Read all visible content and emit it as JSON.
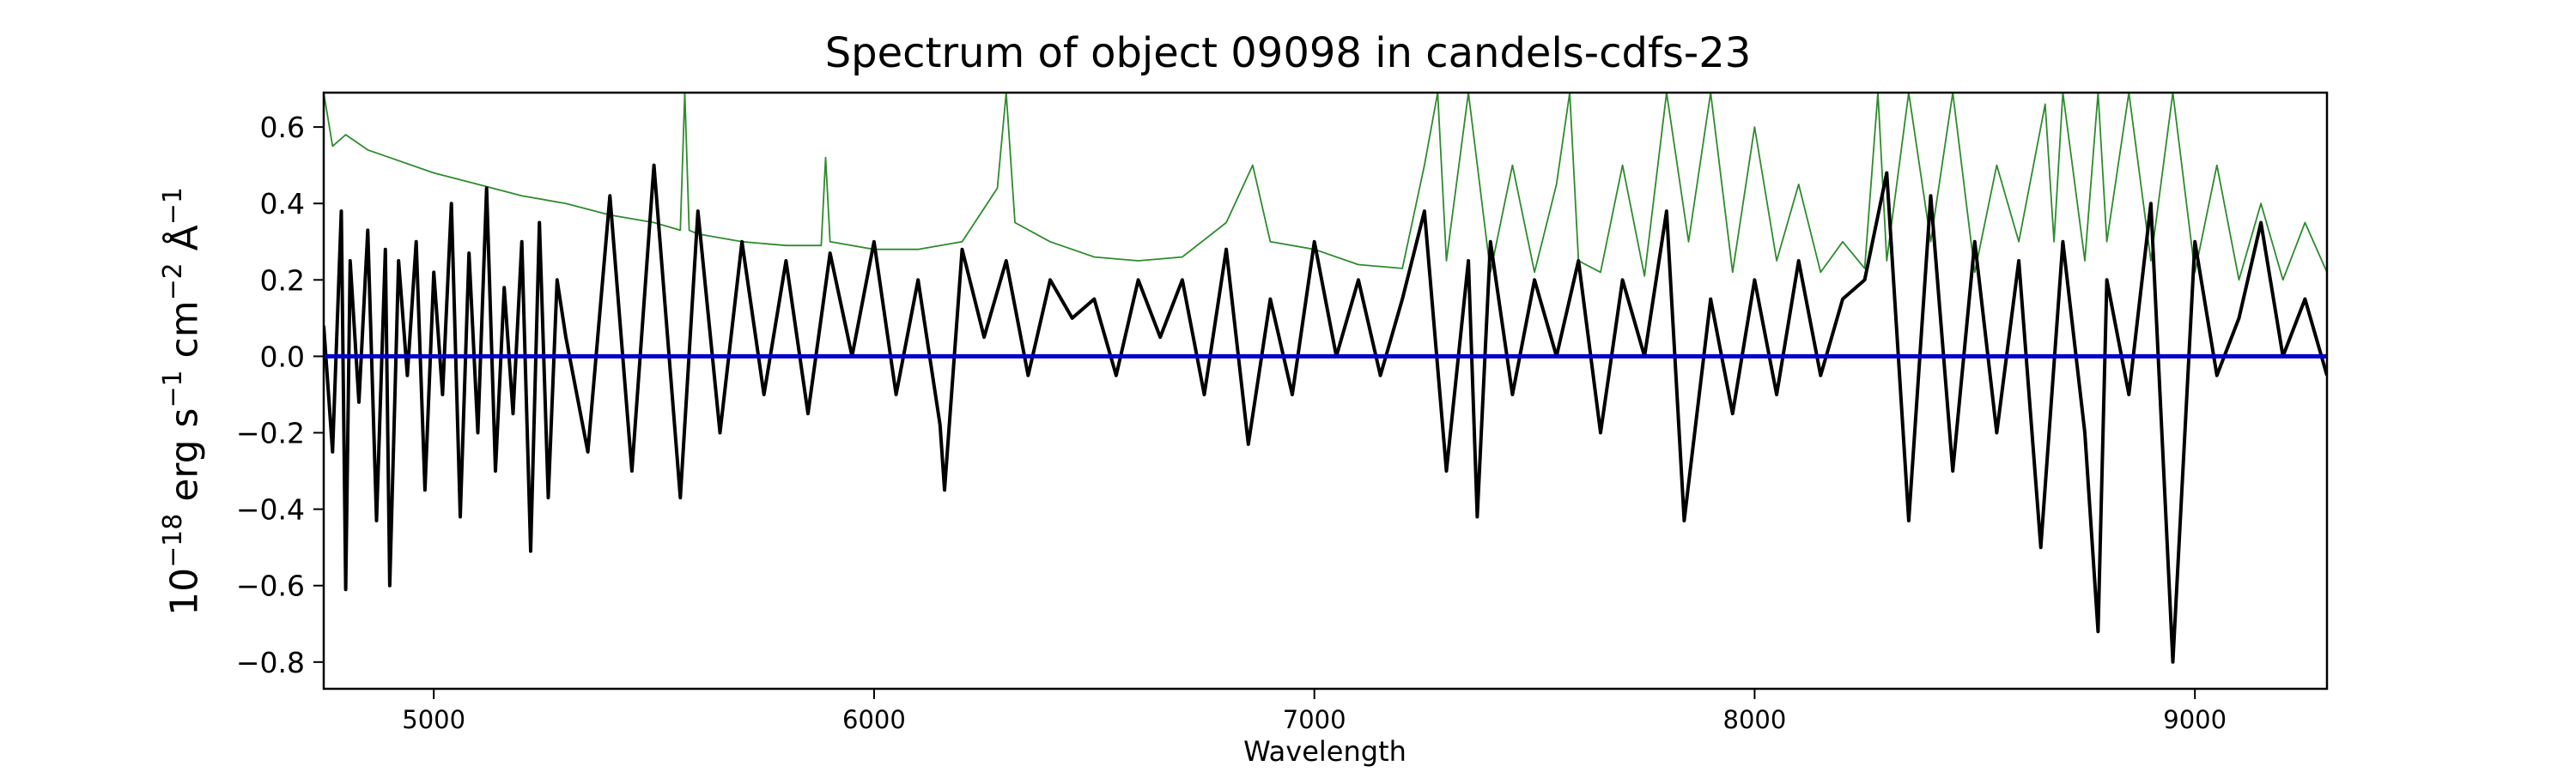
{
  "chart_data": {
    "type": "line",
    "title": "Spectrum of object 09098 in candels-cdfs-23",
    "xlabel": "Wavelength",
    "ylabel": {
      "prefix": "10",
      "exp1": "−18",
      "mid1": " erg s",
      "exp2": "−1",
      "mid2": " cm",
      "exp3": "−2",
      "mid3": " Å",
      "exp4": "−1"
    },
    "xlim": [
      4750,
      9300
    ],
    "ylim": [
      -0.87,
      0.69
    ],
    "xticks": [
      {
        "value": 5000,
        "label": "5000"
      },
      {
        "value": 6000,
        "label": "6000"
      },
      {
        "value": 7000,
        "label": "7000"
      },
      {
        "value": 8000,
        "label": "8000"
      },
      {
        "value": 9000,
        "label": "9000"
      }
    ],
    "yticks": [
      {
        "value": 0.6,
        "label": "0.6"
      },
      {
        "value": 0.4,
        "label": "0.4"
      },
      {
        "value": 0.2,
        "label": "0.2"
      },
      {
        "value": 0.0,
        "label": "0.0"
      },
      {
        "value": -0.2,
        "label": "−0.2"
      },
      {
        "value": -0.4,
        "label": "−0.4"
      },
      {
        "value": -0.6,
        "label": "−0.6"
      },
      {
        "value": -0.8,
        "label": "−0.8"
      }
    ],
    "grid": false,
    "colors": {
      "flux": "#000000",
      "error": "#2e8b2e",
      "zero": "#0000cc"
    },
    "series": [
      {
        "role": "flux",
        "x": [
          4750,
          4770,
          4790,
          4800,
          4810,
          4830,
          4850,
          4870,
          4890,
          4900,
          4920,
          4940,
          4960,
          4980,
          5000,
          5020,
          5040,
          5060,
          5080,
          5100,
          5120,
          5140,
          5160,
          5180,
          5200,
          5220,
          5240,
          5260,
          5280,
          5300,
          5350,
          5400,
          5450,
          5500,
          5560,
          5600,
          5650,
          5700,
          5750,
          5800,
          5850,
          5900,
          5950,
          6000,
          6050,
          6100,
          6150,
          6160,
          6200,
          6250,
          6300,
          6350,
          6400,
          6450,
          6500,
          6550,
          6600,
          6650,
          6700,
          6750,
          6800,
          6850,
          6900,
          6950,
          7000,
          7050,
          7100,
          7150,
          7200,
          7250,
          7300,
          7350,
          7370,
          7400,
          7450,
          7500,
          7550,
          7600,
          7650,
          7700,
          7750,
          7800,
          7840,
          7900,
          7950,
          8000,
          8050,
          8100,
          8150,
          8200,
          8250,
          8300,
          8350,
          8400,
          8450,
          8500,
          8550,
          8600,
          8650,
          8700,
          8750,
          8780,
          8800,
          8850,
          8900,
          8950,
          9000,
          9050,
          9100,
          9150,
          9200,
          9250,
          9300
        ],
        "y": [
          0.08,
          -0.25,
          0.38,
          -0.61,
          0.25,
          -0.12,
          0.33,
          -0.43,
          0.28,
          -0.6,
          0.25,
          -0.05,
          0.3,
          -0.35,
          0.22,
          -0.1,
          0.4,
          -0.42,
          0.27,
          -0.2,
          0.44,
          -0.3,
          0.18,
          -0.15,
          0.3,
          -0.51,
          0.35,
          -0.37,
          0.2,
          0.05,
          -0.25,
          0.42,
          -0.3,
          0.5,
          -0.37,
          0.38,
          -0.2,
          0.3,
          -0.1,
          0.25,
          -0.15,
          0.27,
          0.0,
          0.3,
          -0.1,
          0.2,
          -0.18,
          -0.35,
          0.28,
          0.05,
          0.25,
          -0.05,
          0.2,
          0.1,
          0.15,
          -0.05,
          0.2,
          0.05,
          0.2,
          -0.1,
          0.28,
          -0.23,
          0.15,
          -0.1,
          0.3,
          0.0,
          0.2,
          -0.05,
          0.15,
          0.38,
          -0.3,
          0.25,
          -0.42,
          0.3,
          -0.1,
          0.2,
          0.0,
          0.25,
          -0.2,
          0.2,
          0.0,
          0.38,
          -0.43,
          0.15,
          -0.15,
          0.2,
          -0.1,
          0.25,
          -0.05,
          0.15,
          0.2,
          0.48,
          -0.43,
          0.42,
          -0.3,
          0.3,
          -0.2,
          0.25,
          -0.5,
          0.3,
          -0.2,
          -0.72,
          0.2,
          -0.1,
          0.4,
          -0.8,
          0.3,
          -0.05,
          0.1,
          0.35,
          0.0,
          0.15,
          -0.05
        ]
      },
      {
        "role": "error",
        "x": [
          4750,
          4770,
          4800,
          4850,
          4900,
          5000,
          5100,
          5200,
          5300,
          5400,
          5500,
          5560,
          5570,
          5580,
          5600,
          5700,
          5800,
          5880,
          5890,
          5900,
          6000,
          6100,
          6200,
          6280,
          6300,
          6320,
          6400,
          6500,
          6600,
          6700,
          6800,
          6860,
          6900,
          7000,
          7100,
          7200,
          7250,
          7280,
          7300,
          7350,
          7400,
          7450,
          7500,
          7550,
          7580,
          7600,
          7650,
          7700,
          7750,
          7800,
          7850,
          7900,
          7950,
          8000,
          8050,
          8100,
          8150,
          8200,
          8250,
          8280,
          8300,
          8350,
          8400,
          8450,
          8500,
          8550,
          8600,
          8650,
          8660,
          8680,
          8700,
          8750,
          8780,
          8800,
          8850,
          8900,
          8950,
          9000,
          9050,
          9100,
          9150,
          9200,
          9250,
          9300
        ],
        "y": [
          0.69,
          0.55,
          0.58,
          0.54,
          0.52,
          0.48,
          0.45,
          0.42,
          0.4,
          0.37,
          0.35,
          0.33,
          0.69,
          0.33,
          0.32,
          0.3,
          0.29,
          0.29,
          0.52,
          0.3,
          0.28,
          0.28,
          0.3,
          0.44,
          0.69,
          0.35,
          0.3,
          0.26,
          0.25,
          0.26,
          0.35,
          0.5,
          0.3,
          0.28,
          0.24,
          0.23,
          0.5,
          0.69,
          0.25,
          0.69,
          0.22,
          0.5,
          0.22,
          0.45,
          0.69,
          0.25,
          0.22,
          0.5,
          0.21,
          0.69,
          0.3,
          0.69,
          0.22,
          0.6,
          0.25,
          0.45,
          0.22,
          0.3,
          0.23,
          0.69,
          0.25,
          0.69,
          0.3,
          0.69,
          0.22,
          0.5,
          0.3,
          0.6,
          0.66,
          0.3,
          0.69,
          0.25,
          0.69,
          0.3,
          0.69,
          0.25,
          0.69,
          0.22,
          0.5,
          0.2,
          0.4,
          0.2,
          0.35,
          0.22
        ]
      },
      {
        "role": "zero",
        "x": [
          4750,
          9300
        ],
        "y": [
          0.0,
          0.0
        ]
      }
    ]
  }
}
